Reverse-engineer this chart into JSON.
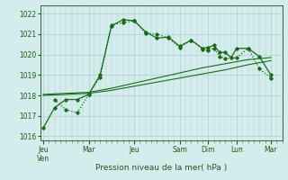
{
  "title": "",
  "xlabel": "Pression niveau de la mer( hPa )",
  "ylabel": "",
  "bg_color": "#d4ecec",
  "grid_color": "#b0d0d0",
  "line_color": "#1a6b1a",
  "ylim": [
    1015.8,
    1022.4
  ],
  "yticks": [
    1016,
    1017,
    1018,
    1019,
    1020,
    1021,
    1022
  ],
  "xtick_labels": [
    "Jeu\nVen",
    "Mar",
    "Jeu",
    "Sam",
    "Dim",
    "Lun",
    "Mar"
  ],
  "xtick_positions": [
    0,
    8,
    16,
    24,
    29,
    34,
    40
  ],
  "xminor_interval": 1,
  "xlim": [
    -0.5,
    42
  ],
  "line1_x": [
    0,
    2,
    4,
    6,
    8,
    10,
    12,
    14,
    16,
    18,
    20,
    22,
    24,
    26,
    28,
    29,
    30,
    31,
    32,
    33,
    34,
    36,
    38,
    40
  ],
  "line1_y": [
    1016.4,
    1017.4,
    1017.8,
    1017.8,
    1018.05,
    1019.0,
    1021.4,
    1021.7,
    1021.65,
    1021.1,
    1020.8,
    1020.85,
    1020.4,
    1020.7,
    1020.3,
    1020.35,
    1020.45,
    1020.1,
    1020.1,
    1019.85,
    1020.3,
    1020.3,
    1019.9,
    1019.0
  ],
  "line2_x": [
    2,
    4,
    6,
    8,
    10,
    12,
    14,
    16,
    18,
    20,
    22,
    24,
    26,
    28,
    29,
    30,
    31,
    32,
    34,
    36,
    38,
    40
  ],
  "line2_y": [
    1017.8,
    1017.3,
    1017.15,
    1018.05,
    1018.9,
    1021.45,
    1021.55,
    1021.65,
    1021.05,
    1021.0,
    1020.8,
    1020.35,
    1020.7,
    1020.25,
    1020.2,
    1020.3,
    1019.9,
    1019.8,
    1019.85,
    1020.3,
    1019.3,
    1018.85
  ],
  "line3_x": [
    0,
    4,
    8,
    12,
    16,
    20,
    24,
    28,
    32,
    36,
    40
  ],
  "line3_y": [
    1018.05,
    1018.1,
    1018.15,
    1018.35,
    1018.6,
    1018.85,
    1019.1,
    1019.35,
    1019.55,
    1019.75,
    1019.85
  ],
  "line4_x": [
    0,
    4,
    8,
    12,
    16,
    20,
    24,
    28,
    32,
    36,
    40
  ],
  "line4_y": [
    1018.0,
    1018.05,
    1018.1,
    1018.25,
    1018.45,
    1018.65,
    1018.85,
    1019.05,
    1019.25,
    1019.5,
    1019.7
  ]
}
